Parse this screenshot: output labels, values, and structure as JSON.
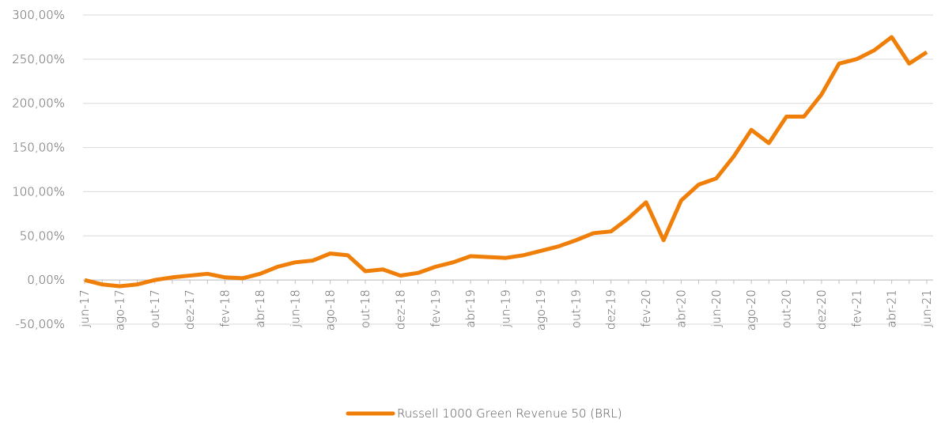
{
  "chart_data": {
    "type": "line",
    "categories": [
      "jun-17",
      null,
      "ago-17",
      null,
      "out-17",
      null,
      "dez-17",
      null,
      "fev-18",
      null,
      "abr-18",
      null,
      "jun-18",
      null,
      "ago-18",
      null,
      "out-18",
      null,
      "dez-18",
      null,
      "fev-19",
      null,
      "abr-19",
      null,
      "jun-19",
      null,
      "ago-19",
      null,
      "out-19",
      null,
      "dez-19",
      null,
      "fev-20",
      null,
      "abr-20",
      null,
      "jun-20",
      null,
      "ago-20",
      null,
      "out-20",
      null,
      "dez-20",
      null,
      "fev-21",
      null,
      "abr-21",
      null,
      "jun-21"
    ],
    "series": [
      {
        "name": "Russell 1000 Green Revenue 50 (BRL)",
        "color": "#f07f09",
        "values": [
          0,
          -5,
          -7,
          -5,
          0,
          3,
          5,
          7,
          3,
          2,
          7,
          15,
          20,
          22,
          30,
          28,
          10,
          12,
          5,
          8,
          15,
          20,
          27,
          26,
          25,
          28,
          33,
          38,
          45,
          53,
          55,
          70,
          88,
          45,
          90,
          108,
          115,
          140,
          170,
          155,
          185,
          185,
          210,
          245,
          250,
          260,
          275,
          245,
          258
        ]
      }
    ],
    "ylim": [
      -50,
      300
    ],
    "yticks": [
      {
        "value": -50,
        "label": "-50,00%"
      },
      {
        "value": 0,
        "label": "0,00%"
      },
      {
        "value": 50,
        "label": "50,00%"
      },
      {
        "value": 100,
        "label": "100,00%"
      },
      {
        "value": 150,
        "label": "150,00%"
      },
      {
        "value": 200,
        "label": "200,00%"
      },
      {
        "value": 250,
        "label": "250,00%"
      },
      {
        "value": 300,
        "label": "300,00%"
      }
    ],
    "grid": true,
    "legend": "bottom"
  }
}
